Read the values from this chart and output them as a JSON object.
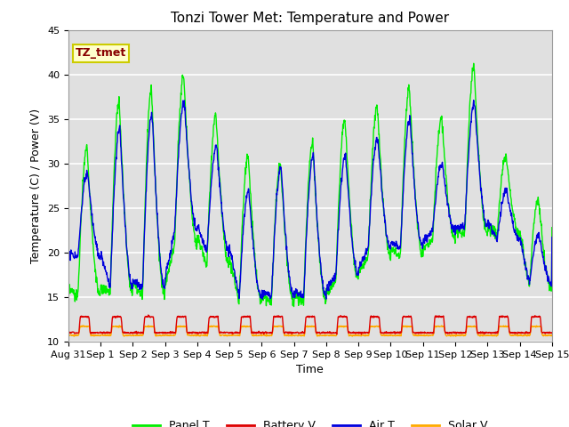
{
  "title": "Tonzi Tower Met: Temperature and Power",
  "xlabel": "Time",
  "ylabel": "Temperature (C) / Power (V)",
  "ylim": [
    10,
    45
  ],
  "yticks": [
    10,
    15,
    20,
    25,
    30,
    35,
    40,
    45
  ],
  "xtick_labels": [
    "Aug 31",
    "Sep 1",
    "Sep 2",
    "Sep 3",
    "Sep 4",
    "Sep 5",
    "Sep 6",
    "Sep 7",
    "Sep 8",
    "Sep 9",
    "Sep 10",
    "Sep 11",
    "Sep 12",
    "Sep 13",
    "Sep 14",
    "Sep 15"
  ],
  "annotation_text": "TZ_tmet",
  "annotation_box_facecolor": "#ffffcc",
  "annotation_box_edgecolor": "#cccc00",
  "annotation_text_color": "#880000",
  "colors": {
    "Panel T": "#00ee00",
    "Battery V": "#dd0000",
    "Air T": "#0000dd",
    "Solar V": "#ffaa00"
  },
  "legend_labels": [
    "Panel T",
    "Battery V",
    "Air T",
    "Solar V"
  ],
  "bg_color": "#e0e0e0",
  "fig_bg": "#ffffff",
  "grid_color": "#ffffff",
  "title_fontsize": 11,
  "axis_fontsize": 9,
  "tick_fontsize": 8,
  "linewidth": 1.0
}
